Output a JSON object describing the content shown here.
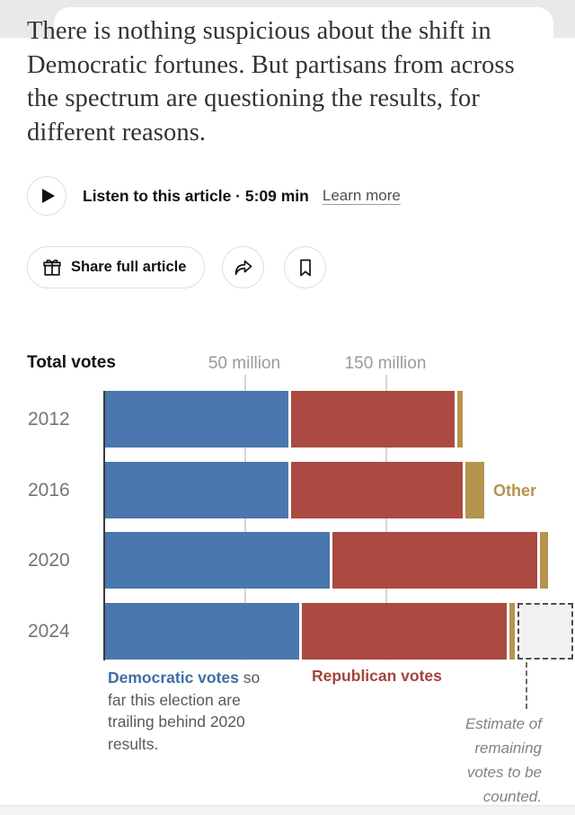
{
  "article": {
    "summary_lines": [
      "There is nothing suspicious about the shift in",
      "Democratic fortunes. But partisans from across",
      "the spectrum are questioning the results, for",
      "different reasons."
    ]
  },
  "audio": {
    "label": "Listen to this article · 5:09 min",
    "learn_more": "Learn more"
  },
  "actions": {
    "share_full_article": "Share full article"
  },
  "chart_data": {
    "type": "bar",
    "orientation": "horizontal",
    "stacked": true,
    "title": "Total votes",
    "unit": "millions of votes",
    "x_axis": {
      "ticks": [
        {
          "value": 50,
          "label": "50 million"
        },
        {
          "value": 150,
          "label": "150 million"
        }
      ]
    },
    "categories": [
      "2012",
      "2016",
      "2020",
      "2024"
    ],
    "series": [
      {
        "name": "Democratic",
        "color": "#4a77ad",
        "values": [
          66,
          66,
          81,
          70
        ]
      },
      {
        "name": "Republican",
        "color": "#ac4a42",
        "values": [
          59,
          62,
          74,
          74
        ]
      },
      {
        "name": "Other",
        "color": "#b6934e",
        "values": [
          2,
          7,
          3,
          2
        ]
      }
    ],
    "estimate_remaining_2024_millions": 20,
    "annotations": {
      "other_label": "Other",
      "democratic_bold": "Democratic votes",
      "democratic_rest": " so far this election are trailing behind 2020 results.",
      "republican_label": "Republican votes",
      "estimate_label": "Estimate of remaining votes to be counted."
    },
    "colors": {
      "democratic": "#4a77ad",
      "republican": "#ac4a42",
      "other": "#b6934e",
      "estimate_fill": "#f1f1f1"
    }
  }
}
